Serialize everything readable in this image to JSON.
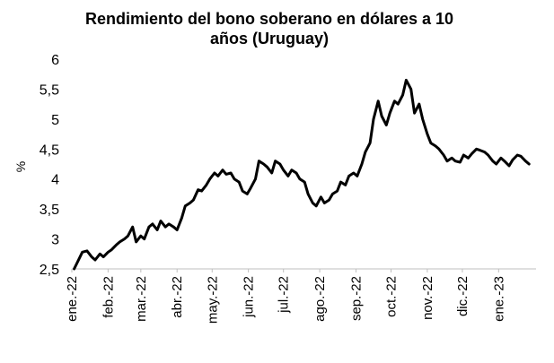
{
  "chart_data": {
    "type": "line",
    "title_line1": "Rendimiento del bono soberano en dólares a 10",
    "title_line2": "años (Uruguay)",
    "xlabel": "",
    "ylabel": "%",
    "ylim": [
      2.5,
      6
    ],
    "yticks": [
      "2,5",
      "3",
      "3,5",
      "4",
      "4,5",
      "5",
      "5,5",
      "6"
    ],
    "ytick_values": [
      2.5,
      3,
      3.5,
      4,
      4.5,
      5,
      5.5,
      6
    ],
    "xticks": [
      "ene.-22",
      "feb.-22",
      "mar.-22",
      "abr.-22",
      "may.-22",
      "jun.-22",
      "jul.-22",
      "ago.-22",
      "sep.-22",
      "oct.-22",
      "nov.-22",
      "dic.-22",
      "ene.-23"
    ],
    "xtick_months": [
      0,
      1,
      2,
      3,
      4,
      5,
      6,
      7,
      8,
      9,
      10,
      11,
      12
    ],
    "grid": false,
    "legend": "none",
    "line_color": "#000000",
    "series": [
      {
        "x": [
          "2022-01-03",
          "2022-01-06",
          "2022-01-10",
          "2022-01-14",
          "2022-01-18",
          "2022-01-21",
          "2022-01-25",
          "2022-01-28",
          "2022-02-01",
          "2022-02-04",
          "2022-02-08",
          "2022-02-11",
          "2022-02-15",
          "2022-02-18",
          "2022-02-22",
          "2022-02-25",
          "2022-03-01",
          "2022-03-04",
          "2022-03-08",
          "2022-03-11",
          "2022-03-15",
          "2022-03-18",
          "2022-03-22",
          "2022-03-25",
          "2022-03-29",
          "2022-04-01",
          "2022-04-05",
          "2022-04-08",
          "2022-04-12",
          "2022-04-15",
          "2022-04-19",
          "2022-04-22",
          "2022-04-26",
          "2022-04-29",
          "2022-05-03",
          "2022-05-06",
          "2022-05-10",
          "2022-05-13",
          "2022-05-17",
          "2022-05-20",
          "2022-05-24",
          "2022-05-27",
          "2022-05-31",
          "2022-06-03",
          "2022-06-07",
          "2022-06-10",
          "2022-06-14",
          "2022-06-17",
          "2022-06-21",
          "2022-06-24",
          "2022-06-28",
          "2022-07-01",
          "2022-07-05",
          "2022-07-08",
          "2022-07-12",
          "2022-07-15",
          "2022-07-19",
          "2022-07-22",
          "2022-07-26",
          "2022-07-29",
          "2022-08-02",
          "2022-08-05",
          "2022-08-09",
          "2022-08-12",
          "2022-08-16",
          "2022-08-19",
          "2022-08-23",
          "2022-08-26",
          "2022-08-30",
          "2022-09-02",
          "2022-09-06",
          "2022-09-09",
          "2022-09-13",
          "2022-09-16",
          "2022-09-20",
          "2022-09-23",
          "2022-09-27",
          "2022-09-30",
          "2022-10-04",
          "2022-10-07",
          "2022-10-11",
          "2022-10-14",
          "2022-10-18",
          "2022-10-21",
          "2022-10-25",
          "2022-10-28",
          "2022-11-01",
          "2022-11-04",
          "2022-11-08",
          "2022-11-11",
          "2022-11-15",
          "2022-11-18",
          "2022-11-22",
          "2022-11-25",
          "2022-11-29",
          "2022-12-02",
          "2022-12-06",
          "2022-12-09",
          "2022-12-13",
          "2022-12-16",
          "2022-12-20",
          "2022-12-23",
          "2022-12-27",
          "2022-12-30",
          "2023-01-03",
          "2023-01-06",
          "2023-01-10",
          "2023-01-13",
          "2023-01-17",
          "2023-01-20",
          "2023-01-24",
          "2023-01-27"
        ],
        "values": [
          2.5,
          2.62,
          2.78,
          2.8,
          2.7,
          2.65,
          2.75,
          2.7,
          2.78,
          2.82,
          2.9,
          2.95,
          3.0,
          3.05,
          3.2,
          2.95,
          3.05,
          3.0,
          3.2,
          3.25,
          3.15,
          3.3,
          3.2,
          3.25,
          3.2,
          3.15,
          3.35,
          3.55,
          3.6,
          3.65,
          3.82,
          3.8,
          3.9,
          4.0,
          4.1,
          4.05,
          4.15,
          4.08,
          4.1,
          4.0,
          3.95,
          3.8,
          3.75,
          3.85,
          4.0,
          4.3,
          4.25,
          4.2,
          4.1,
          4.3,
          4.25,
          4.15,
          4.05,
          4.15,
          4.1,
          4.0,
          3.95,
          3.75,
          3.6,
          3.55,
          3.7,
          3.6,
          3.65,
          3.75,
          3.8,
          3.95,
          3.9,
          4.05,
          4.1,
          4.05,
          4.25,
          4.45,
          4.6,
          5.0,
          5.3,
          5.05,
          4.9,
          5.1,
          5.3,
          5.25,
          5.4,
          5.65,
          5.5,
          5.1,
          5.25,
          5.0,
          4.75,
          4.6,
          4.55,
          4.5,
          4.4,
          4.3,
          4.35,
          4.3,
          4.28,
          4.4,
          4.35,
          4.42,
          4.5,
          4.48,
          4.45,
          4.4,
          4.3,
          4.25,
          4.35,
          4.3,
          4.22,
          4.32,
          4.4,
          4.38,
          4.3,
          4.25
        ]
      }
    ]
  }
}
